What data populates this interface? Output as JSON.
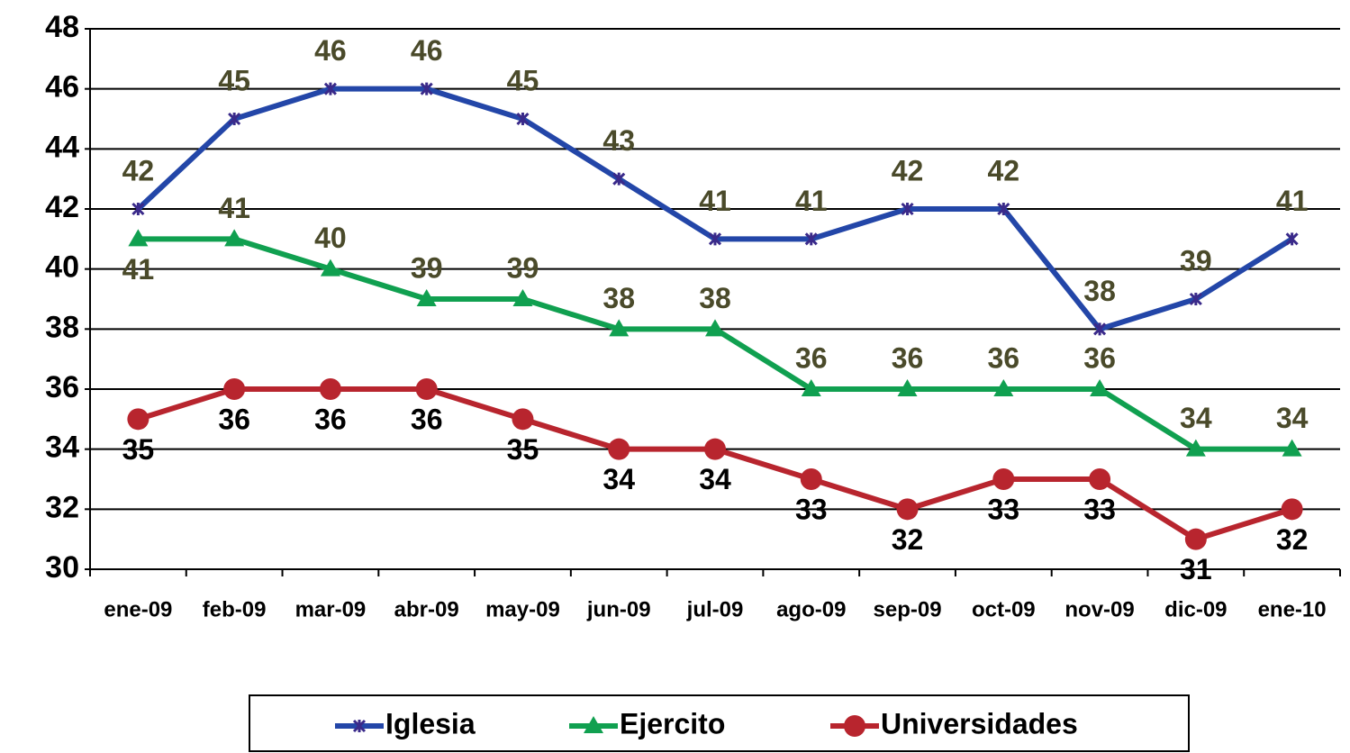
{
  "chart_data": {
    "type": "line",
    "categories": [
      "ene-09",
      "feb-09",
      "mar-09",
      "abr-09",
      "may-09",
      "jun-09",
      "jul-09",
      "ago-09",
      "sep-09",
      "oct-09",
      "nov-09",
      "dic-09",
      "ene-10"
    ],
    "series": [
      {
        "name": "Iglesia",
        "color": "#2346a8",
        "marker": "star",
        "values": [
          42,
          45,
          46,
          46,
          45,
          43,
          41,
          41,
          42,
          42,
          38,
          39,
          41
        ]
      },
      {
        "name": "Ejercito",
        "color": "#10a050",
        "marker": "triangle",
        "values": [
          41,
          41,
          40,
          39,
          39,
          38,
          38,
          36,
          36,
          36,
          36,
          34,
          34
        ]
      },
      {
        "name": "Universidades",
        "color": "#b8252e",
        "marker": "circle",
        "values": [
          35,
          36,
          36,
          36,
          35,
          34,
          34,
          33,
          32,
          33,
          33,
          31,
          32
        ]
      }
    ],
    "ylim": [
      30,
      48
    ],
    "yticks": [
      30,
      32,
      34,
      36,
      38,
      40,
      42,
      44,
      46,
      48
    ],
    "grid": true,
    "legend": "bottom"
  }
}
